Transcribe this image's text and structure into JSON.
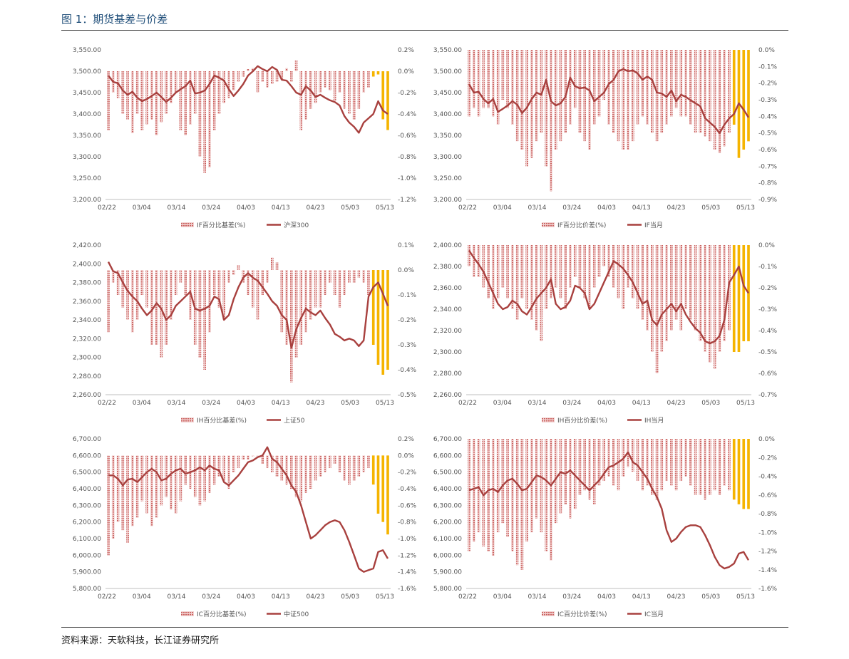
{
  "title": "图 1：期货基差与价差",
  "source": "资料来源：天软科技，长江证券研究所",
  "colors": {
    "bar": "#c9605e",
    "bar_current": "#f5b400",
    "line": "#a8403e"
  },
  "x_ticks": [
    "02/22",
    "03/04",
    "03/14",
    "03/24",
    "04/03",
    "04/13",
    "04/23",
    "05/03",
    "05/13"
  ],
  "chart_data": [
    {
      "type": "bar+line",
      "left_axis": {
        "min": 3200,
        "max": 3550,
        "step": 50,
        "labels": [
          "3,200.00",
          "3,250.00",
          "3,300.00",
          "3,350.00",
          "3,400.00",
          "3,450.00",
          "3,500.00",
          "3,550.00"
        ]
      },
      "right_axis": {
        "min": -1.2,
        "max": 0.2,
        "step": 0.2,
        "labels": [
          "-1.2%",
          "-1.0%",
          "-0.8%",
          "-0.6%",
          "-0.4%",
          "-0.2%",
          "0.0%",
          "0.2%"
        ]
      },
      "legend": [
        "IF百分比基差(%)",
        "沪深300"
      ],
      "line_values": [
        3490,
        3475,
        3472,
        3455,
        3445,
        3452,
        3438,
        3430,
        3435,
        3442,
        3450,
        3440,
        3428,
        3438,
        3450,
        3458,
        3465,
        3478,
        3448,
        3450,
        3455,
        3470,
        3490,
        3485,
        3478,
        3458,
        3442,
        3455,
        3470,
        3490,
        3500,
        3512,
        3505,
        3500,
        3510,
        3503,
        3480,
        3478,
        3465,
        3450,
        3445,
        3465,
        3455,
        3440,
        3445,
        3438,
        3432,
        3428,
        3420,
        3395,
        3380,
        3370,
        3356,
        3380,
        3390,
        3400,
        3430,
        3408,
        3400
      ],
      "bar_values": [
        -0.55,
        -0.2,
        -0.25,
        -0.4,
        -0.45,
        -0.58,
        -0.4,
        -0.55,
        -0.5,
        -0.45,
        -0.6,
        -0.48,
        -0.4,
        -0.3,
        -0.2,
        -0.55,
        -0.6,
        -0.5,
        -0.4,
        -0.8,
        -0.95,
        -0.9,
        -0.55,
        -0.4,
        -0.3,
        -0.25,
        -0.18,
        -0.1,
        -0.05,
        0.02,
        0.03,
        -0.2,
        -0.1,
        -0.15,
        -0.12,
        -0.1,
        -0.08,
        0.03,
        -0.1,
        0.1,
        -0.55,
        -0.45,
        -0.35,
        -0.3,
        -0.2,
        -0.15,
        -0.18,
        -0.28,
        -0.2,
        -0.35,
        -0.4,
        -0.45,
        -0.35,
        -0.2,
        -0.15,
        -0.05,
        -0.03,
        -0.45,
        -0.55
      ],
      "current_from": 55
    },
    {
      "type": "bar+line",
      "left_axis": {
        "min": 3200,
        "max": 3550,
        "step": 50,
        "labels": [
          "3,200.00",
          "3,250.00",
          "3,300.00",
          "3,350.00",
          "3,400.00",
          "3,450.00",
          "3,500.00",
          "3,550.00"
        ]
      },
      "right_axis": {
        "min": -0.9,
        "max": 0.0,
        "step": 0.1,
        "labels": [
          "-0.9%",
          "-0.8%",
          "-0.7%",
          "-0.6%",
          "-0.5%",
          "-0.4%",
          "-0.3%",
          "-0.2%",
          "-0.1%",
          "0.0%"
        ]
      },
      "legend": [
        "IF百分比价差(%)",
        "IF当月"
      ],
      "line_values": [
        3470,
        3450,
        3452,
        3435,
        3425,
        3435,
        3405,
        3412,
        3420,
        3430,
        3422,
        3402,
        3415,
        3435,
        3450,
        3445,
        3480,
        3430,
        3420,
        3425,
        3440,
        3485,
        3465,
        3460,
        3462,
        3455,
        3430,
        3440,
        3450,
        3470,
        3480,
        3500,
        3505,
        3500,
        3502,
        3495,
        3480,
        3488,
        3480,
        3450,
        3448,
        3440,
        3455,
        3430,
        3445,
        3440,
        3432,
        3425,
        3418,
        3390,
        3380,
        3370,
        3355,
        3375,
        3390,
        3400,
        3425,
        3410,
        3392
      ],
      "bar_values": [
        -0.4,
        -0.35,
        -0.4,
        -0.35,
        -0.35,
        -0.4,
        -0.45,
        -0.3,
        -0.35,
        -0.45,
        -0.55,
        -0.6,
        -0.7,
        -0.65,
        -0.55,
        -0.5,
        -0.7,
        -0.85,
        -0.6,
        -0.55,
        -0.5,
        -0.45,
        -0.35,
        -0.5,
        -0.55,
        -0.6,
        -0.45,
        -0.4,
        -0.3,
        -0.45,
        -0.5,
        -0.55,
        -0.6,
        -0.6,
        -0.55,
        -0.45,
        -0.4,
        -0.45,
        -0.5,
        -0.55,
        -0.5,
        -0.45,
        -0.4,
        -0.35,
        -0.4,
        -0.4,
        -0.45,
        -0.5,
        -0.5,
        -0.52,
        -0.55,
        -0.6,
        -0.62,
        -0.58,
        -0.5,
        -0.45,
        -0.65,
        -0.6,
        -0.55
      ],
      "current_from": 55
    },
    {
      "type": "bar+line",
      "left_axis": {
        "min": 2260,
        "max": 2420,
        "step": 20,
        "labels": [
          "2,260.00",
          "2,280.00",
          "2,300.00",
          "2,320.00",
          "2,340.00",
          "2,360.00",
          "2,380.00",
          "2,400.00",
          "2,420.00"
        ]
      },
      "right_axis": {
        "min": -0.5,
        "max": 0.1,
        "step": 0.1,
        "labels": [
          "-0.5%",
          "-0.4%",
          "-0.3%",
          "-0.2%",
          "-0.1%",
          "0.0%",
          "0.1%"
        ]
      },
      "legend": [
        "IH百分比基差(%)",
        "上证50"
      ],
      "line_values": [
        2402,
        2392,
        2390,
        2380,
        2371,
        2365,
        2360,
        2352,
        2345,
        2350,
        2358,
        2352,
        2340,
        2345,
        2355,
        2360,
        2365,
        2370,
        2352,
        2350,
        2352,
        2355,
        2365,
        2362,
        2340,
        2345,
        2362,
        2375,
        2385,
        2390,
        2385,
        2382,
        2375,
        2368,
        2360,
        2355,
        2345,
        2340,
        2310,
        2330,
        2342,
        2352,
        2348,
        2345,
        2350,
        2342,
        2335,
        2325,
        2322,
        2318,
        2320,
        2318,
        2312,
        2318,
        2365,
        2375,
        2380,
        2368,
        2355
      ],
      "bar_values": [
        -0.25,
        -0.05,
        -0.1,
        -0.15,
        -0.2,
        -0.25,
        -0.2,
        -0.1,
        -0.15,
        -0.3,
        -0.3,
        -0.35,
        -0.3,
        -0.2,
        -0.1,
        -0.05,
        -0.1,
        -0.2,
        -0.3,
        -0.35,
        -0.4,
        -0.25,
        -0.1,
        -0.15,
        -0.2,
        -0.05,
        -0.02,
        0.02,
        -0.05,
        -0.1,
        -0.15,
        -0.2,
        -0.1,
        -0.05,
        0.05,
        0.03,
        -0.25,
        -0.3,
        -0.45,
        -0.35,
        -0.3,
        -0.25,
        -0.2,
        -0.15,
        -0.15,
        -0.1,
        -0.05,
        -0.1,
        -0.15,
        -0.1,
        -0.05,
        -0.05,
        -0.03,
        -0.05,
        -0.1,
        -0.3,
        -0.38,
        -0.42,
        -0.4
      ],
      "current_from": 55
    },
    {
      "type": "bar+line",
      "left_axis": {
        "min": 2260,
        "max": 2400,
        "step": 20,
        "labels": [
          "2,260.00",
          "2,280.00",
          "2,300.00",
          "2,320.00",
          "2,340.00",
          "2,360.00",
          "2,380.00",
          "2,400.00"
        ]
      },
      "right_axis": {
        "min": -0.7,
        "max": 0.0,
        "step": 0.1,
        "labels": [
          "-0.7%",
          "-0.6%",
          "-0.5%",
          "-0.4%",
          "-0.3%",
          "-0.2%",
          "-0.1%",
          "0.0%"
        ]
      },
      "legend": [
        "IH百分比价差(%)",
        "IH当月"
      ],
      "line_values": [
        2395,
        2388,
        2382,
        2375,
        2365,
        2355,
        2345,
        2340,
        2342,
        2348,
        2345,
        2338,
        2335,
        2342,
        2350,
        2355,
        2360,
        2368,
        2345,
        2340,
        2342,
        2348,
        2362,
        2360,
        2355,
        2340,
        2345,
        2355,
        2365,
        2375,
        2385,
        2382,
        2378,
        2372,
        2365,
        2355,
        2345,
        2348,
        2330,
        2325,
        2335,
        2340,
        2345,
        2338,
        2345,
        2335,
        2328,
        2322,
        2318,
        2310,
        2308,
        2310,
        2315,
        2330,
        2365,
        2372,
        2380,
        2362,
        2355
      ],
      "bar_values": [
        -0.1,
        -0.15,
        -0.15,
        -0.2,
        -0.25,
        -0.3,
        -0.25,
        -0.2,
        -0.25,
        -0.3,
        -0.35,
        -0.25,
        -0.3,
        -0.35,
        -0.4,
        -0.45,
        -0.3,
        -0.25,
        -0.2,
        -0.25,
        -0.3,
        -0.2,
        -0.15,
        -0.2,
        -0.25,
        -0.3,
        -0.2,
        -0.15,
        -0.1,
        -0.15,
        -0.2,
        -0.25,
        -0.3,
        -0.2,
        -0.25,
        -0.3,
        -0.35,
        -0.4,
        -0.5,
        -0.6,
        -0.5,
        -0.45,
        -0.4,
        -0.35,
        -0.4,
        -0.3,
        -0.35,
        -0.4,
        -0.45,
        -0.5,
        -0.55,
        -0.58,
        -0.5,
        -0.45,
        -0.4,
        -0.5,
        -0.5,
        -0.45,
        -0.45
      ],
      "current_from": 55
    },
    {
      "type": "bar+line",
      "left_axis": {
        "min": 5800,
        "max": 6700,
        "step": 100,
        "labels": [
          "5,800.00",
          "5,900.00",
          "6,000.00",
          "6,100.00",
          "6,200.00",
          "6,300.00",
          "6,400.00",
          "6,500.00",
          "6,600.00",
          "6,700.00"
        ]
      },
      "right_axis": {
        "min": -1.6,
        "max": 0.2,
        "step": 0.2,
        "labels": [
          "-1.6%",
          "-1.4%",
          "-1.2%",
          "-1.0%",
          "-0.8%",
          "-0.6%",
          "-0.4%",
          "-0.2%",
          "0.0%",
          "0.2%"
        ]
      },
      "legend": [
        "IC百分比基差(%)",
        "中证500"
      ],
      "line_values": [
        6480,
        6480,
        6460,
        6420,
        6455,
        6460,
        6440,
        6470,
        6500,
        6520,
        6500,
        6450,
        6460,
        6490,
        6510,
        6520,
        6490,
        6500,
        6510,
        6530,
        6510,
        6540,
        6520,
        6510,
        6440,
        6420,
        6450,
        6480,
        6520,
        6560,
        6570,
        6590,
        6600,
        6650,
        6580,
        6560,
        6520,
        6480,
        6420,
        6380,
        6300,
        6200,
        6100,
        6120,
        6150,
        6180,
        6200,
        6210,
        6200,
        6150,
        6080,
        6000,
        5920,
        5900,
        5910,
        5920,
        6020,
        6030,
        5980
      ],
      "bar_values": [
        -1.2,
        -1.0,
        -0.8,
        -0.9,
        -1.05,
        -0.85,
        -0.75,
        -0.55,
        -0.7,
        -0.85,
        -0.75,
        -0.6,
        -0.5,
        -0.65,
        -0.7,
        -0.55,
        -0.35,
        -0.4,
        -0.5,
        -0.6,
        -0.55,
        -0.45,
        -0.35,
        -0.25,
        -0.3,
        -0.4,
        -0.2,
        -0.15,
        -0.05,
        -0.05,
        0.0,
        0.0,
        -0.1,
        -0.15,
        -0.2,
        -0.25,
        -0.3,
        -0.35,
        -0.4,
        -0.5,
        -0.55,
        -0.45,
        -0.4,
        -0.3,
        -0.25,
        -0.2,
        -0.15,
        -0.1,
        -0.2,
        -0.3,
        -0.35,
        -0.3,
        -0.25,
        -0.2,
        -0.15,
        -0.35,
        -0.7,
        -0.8,
        -0.95
      ],
      "current_from": 55
    },
    {
      "type": "bar+line",
      "left_axis": {
        "min": 5800,
        "max": 6700,
        "step": 100,
        "labels": [
          "5,800.00",
          "5,900.00",
          "6,000.00",
          "6,100.00",
          "6,200.00",
          "6,300.00",
          "6,400.00",
          "6,500.00",
          "6,600.00",
          "6,700.00"
        ]
      },
      "right_axis": {
        "min": -1.6,
        "max": 0.0,
        "step": 0.2,
        "labels": [
          "-1.6%",
          "-1.4%",
          "-1.2%",
          "-1.0%",
          "-0.8%",
          "-0.6%",
          "-0.4%",
          "-0.2%",
          "0.0%"
        ]
      },
      "legend": [
        "IC百分比价差(%)",
        "IC当月"
      ],
      "line_values": [
        6390,
        6400,
        6410,
        6360,
        6390,
        6400,
        6380,
        6420,
        6450,
        6460,
        6430,
        6390,
        6400,
        6440,
        6480,
        6470,
        6450,
        6420,
        6460,
        6500,
        6490,
        6510,
        6480,
        6450,
        6420,
        6390,
        6420,
        6450,
        6490,
        6530,
        6540,
        6560,
        6580,
        6620,
        6560,
        6540,
        6500,
        6460,
        6400,
        6350,
        6280,
        6150,
        6080,
        6100,
        6140,
        6170,
        6180,
        6180,
        6170,
        6120,
        6060,
        5990,
        5940,
        5920,
        5930,
        5950,
        6010,
        6020,
        5970
      ],
      "bar_values": [
        -1.2,
        -1.1,
        -1.0,
        -1.15,
        -1.2,
        -1.25,
        -1.0,
        -0.9,
        -1.05,
        -1.2,
        -1.35,
        -1.4,
        -1.1,
        -1.0,
        -0.85,
        -1.0,
        -1.2,
        -1.3,
        -0.9,
        -0.8,
        -0.7,
        -0.85,
        -0.75,
        -0.6,
        -0.55,
        -0.65,
        -0.7,
        -0.5,
        -0.45,
        -0.4,
        -0.5,
        -0.55,
        -0.4,
        -0.3,
        -0.35,
        -0.45,
        -0.55,
        -0.5,
        -0.6,
        -0.65,
        -0.55,
        -0.45,
        -0.5,
        -0.55,
        -0.45,
        -0.4,
        -0.5,
        -0.6,
        -0.6,
        -0.65,
        -0.6,
        -0.55,
        -0.6,
        -0.5,
        -0.55,
        -0.65,
        -0.7,
        -0.75,
        -0.75
      ],
      "current_from": 55
    }
  ]
}
